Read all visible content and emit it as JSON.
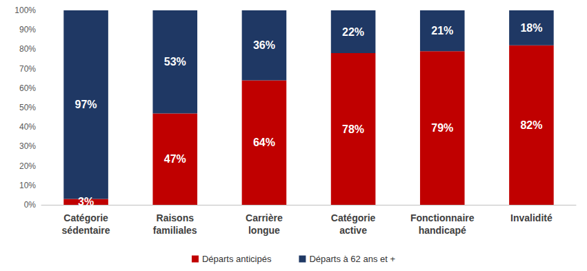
{
  "chart_data": {
    "type": "bar",
    "stacked": true,
    "categories": [
      "Catégorie sédentaire",
      "Raisons familiales",
      "Carrière longue",
      "Catégorie active",
      "Fonctionnaire handicapé",
      "Invalidité"
    ],
    "series": [
      {
        "name": "Départs anticipés",
        "color": "#c00000",
        "values": [
          3,
          47,
          64,
          78,
          79,
          82
        ],
        "value_labels": [
          "3%",
          "47%",
          "64%",
          "78%",
          "79%",
          "82%"
        ]
      },
      {
        "name": "Départs à 62 ans et +",
        "color": "#1f3864",
        "values": [
          97,
          53,
          36,
          22,
          21,
          18
        ],
        "value_labels": [
          "97%",
          "53%",
          "36%",
          "22%",
          "21%",
          "18%"
        ]
      }
    ],
    "ylim": [
      0,
      100
    ],
    "yticks": [
      {
        "value": 0,
        "label": "0%"
      },
      {
        "value": 10,
        "label": "10%"
      },
      {
        "value": 20,
        "label": "20%"
      },
      {
        "value": 30,
        "label": "30%"
      },
      {
        "value": 40,
        "label": "40%"
      },
      {
        "value": 50,
        "label": "50%"
      },
      {
        "value": 60,
        "label": "60%"
      },
      {
        "value": 70,
        "label": "70%"
      },
      {
        "value": 80,
        "label": "80%"
      },
      {
        "value": 90,
        "label": "90%"
      },
      {
        "value": 100,
        "label": "100%"
      }
    ],
    "grid": false,
    "legend": "bottom",
    "data_labels": true
  }
}
